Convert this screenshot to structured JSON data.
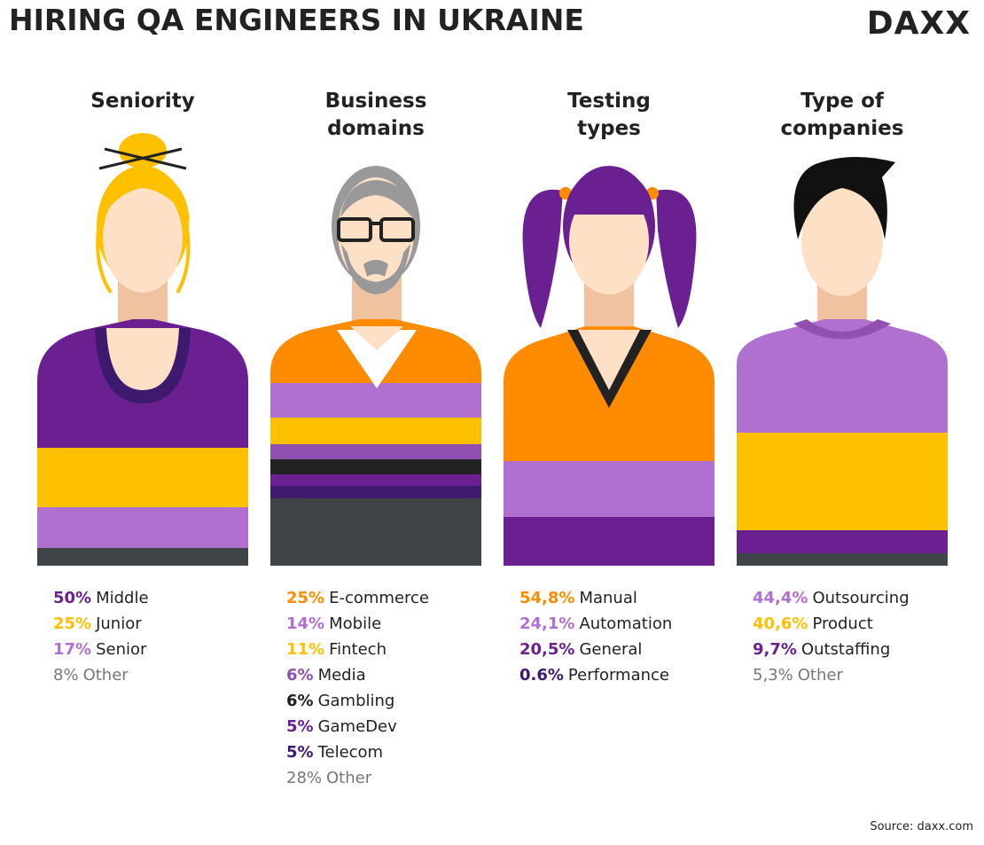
{
  "header": {
    "title": "HIRING QA ENGINEERS IN UKRAINE",
    "logo": "DAXX"
  },
  "panels": [
    {
      "heading": [
        "Seniority"
      ],
      "items": [
        {
          "value": "50%",
          "label": "Middle",
          "color": "#6a2090"
        },
        {
          "value": "25%",
          "label": "Junior",
          "color": "#ffc000"
        },
        {
          "value": "17%",
          "label": "Senior",
          "color": "#b070d0"
        },
        {
          "value": "8%",
          "label": "Other",
          "color": "#777777"
        }
      ]
    },
    {
      "heading": [
        "Business",
        "domains"
      ],
      "items": [
        {
          "value": "25%",
          "label": "E-commerce",
          "color": "#ff8c00"
        },
        {
          "value": "14%",
          "label": "Mobile",
          "color": "#b070d0"
        },
        {
          "value": "11%",
          "label": "Fintech",
          "color": "#ffc000"
        },
        {
          "value": "6%",
          "label": "Media",
          "color": "#9050b0"
        },
        {
          "value": "6%",
          "label": "Gambling",
          "color": "#222222"
        },
        {
          "value": "5%",
          "label": "GameDev",
          "color": "#6a2090"
        },
        {
          "value": "5%",
          "label": "Telecom",
          "color": "#3d1a6e"
        },
        {
          "value": "28%",
          "label": "Other",
          "color": "#777777"
        }
      ]
    },
    {
      "heading": [
        "Testing",
        "types"
      ],
      "items": [
        {
          "value": "54,8%",
          "label": "Manual",
          "color": "#ff8c00"
        },
        {
          "value": "24,1%",
          "label": "Automation",
          "color": "#b070d0"
        },
        {
          "value": "20,5%",
          "label": "General",
          "color": "#6a2090"
        },
        {
          "value": "0.6%",
          "label": "Performance",
          "color": "#3d1a6e"
        }
      ]
    },
    {
      "heading": [
        "Type of",
        "companies"
      ],
      "items": [
        {
          "value": "44,4%",
          "label": "Outsourcing",
          "color": "#b070d0"
        },
        {
          "value": "40,6%",
          "label": "Product",
          "color": "#ffc000"
        },
        {
          "value": "9,7%",
          "label": "Outstaffing",
          "color": "#6a2090"
        },
        {
          "value": "5,3%",
          "label": "Other",
          "color": "#777777"
        }
      ]
    }
  ],
  "source": "Source: daxx.com"
}
